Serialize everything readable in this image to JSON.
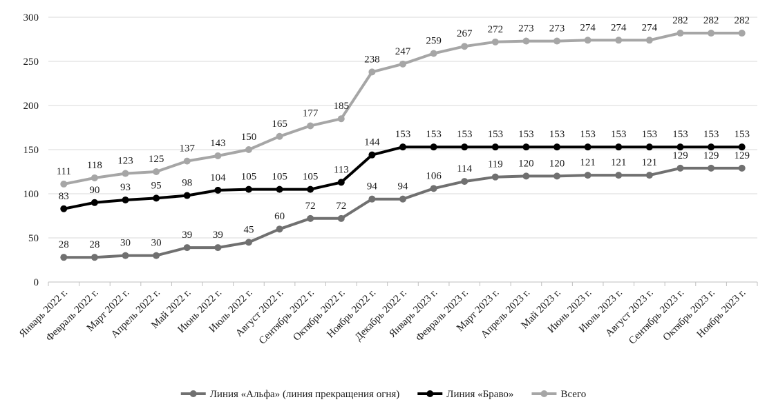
{
  "chart_data": {
    "type": "line",
    "categories": [
      "Январь 2022 г.",
      "Февраль 2022 г.",
      "Март 2022 г.",
      "Апрель 2022 г.",
      "Май 2022 г.",
      "Июнь 2022 г.",
      "Июль 2022 г.",
      "Август 2022 г.",
      "Сентябрь 2022 г.",
      "Октябрь 2022 г.",
      "Ноябрь 2022 г.",
      "Декабрь 2022 г.",
      "Январь 2023 г.",
      "Февраль 2023 г.",
      "Март 2023 г.",
      "Апрель 2023 г.",
      "Май 2023 г.",
      "Июнь 2023 г.",
      "Июль 2023 г.",
      "Август 2023 г.",
      "Сентябрь 2023 г.",
      "Октябрь 2023 г.",
      "Ноябрь 2023 г."
    ],
    "series": [
      {
        "name": "Линия «Альфа» (линия прекращения огня)",
        "color": "#707070",
        "values": [
          28,
          28,
          30,
          30,
          39,
          39,
          45,
          60,
          72,
          72,
          94,
          94,
          106,
          114,
          119,
          120,
          120,
          121,
          121,
          121,
          129,
          129,
          129
        ]
      },
      {
        "name": "Линия «Браво»",
        "color": "#000000",
        "values": [
          83,
          90,
          93,
          95,
          98,
          104,
          105,
          105,
          105,
          113,
          144,
          153,
          153,
          153,
          153,
          153,
          153,
          153,
          153,
          153,
          153,
          153,
          153
        ]
      },
      {
        "name": "Всего",
        "color": "#a6a6a6",
        "values": [
          111,
          118,
          123,
          125,
          137,
          143,
          150,
          165,
          177,
          185,
          238,
          247,
          259,
          267,
          272,
          273,
          273,
          274,
          274,
          274,
          282,
          282,
          282
        ]
      }
    ],
    "ylim": [
      0,
      300
    ],
    "yticks": [
      0,
      50,
      100,
      150,
      200,
      250,
      300
    ],
    "grid": true,
    "legend": "bottom",
    "data_labels": true
  }
}
